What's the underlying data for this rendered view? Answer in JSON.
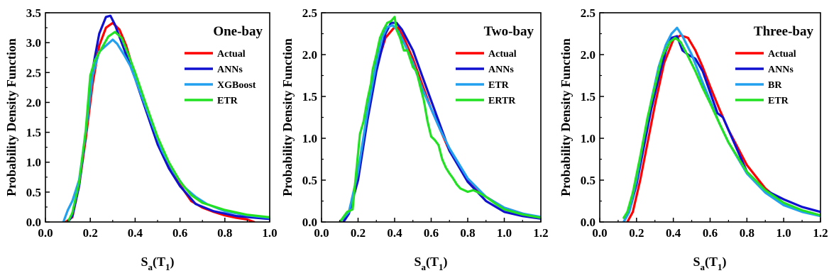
{
  "chart_data": [
    {
      "type": "line",
      "title": "One-bay",
      "xlabel_main": "S",
      "xlabel_sub": "a",
      "xlabel_paren": "(T",
      "xlabel_sub2": "1",
      "xlabel_close": ")",
      "ylabel": "Probability Density Function",
      "xlim": [
        0.0,
        1.0
      ],
      "ylim": [
        0.0,
        3.5
      ],
      "xticks": [
        "0.0",
        "0.2",
        "0.4",
        "0.6",
        "0.8",
        "1.0"
      ],
      "yticks": [
        "0.0",
        "0.5",
        "1.0",
        "1.5",
        "2.0",
        "2.5",
        "3.0",
        "3.5"
      ],
      "legend_position": "top-right",
      "series": [
        {
          "name": "Actual",
          "color": "#ff0000",
          "x": [
            0.09,
            0.12,
            0.15,
            0.18,
            0.21,
            0.24,
            0.27,
            0.3,
            0.33,
            0.36,
            0.4,
            0.45,
            0.5,
            0.55,
            0.6,
            0.65,
            0.7,
            0.75,
            0.8,
            0.85,
            0.9,
            0.93
          ],
          "y": [
            0.0,
            0.08,
            0.6,
            1.4,
            2.3,
            2.95,
            3.25,
            3.33,
            3.22,
            2.95,
            2.45,
            1.9,
            1.35,
            0.95,
            0.62,
            0.35,
            0.24,
            0.17,
            0.11,
            0.07,
            0.04,
            0.0
          ]
        },
        {
          "name": "ANNs",
          "color": "#1010d0",
          "x": [
            0.1,
            0.12,
            0.15,
            0.18,
            0.21,
            0.24,
            0.27,
            0.29,
            0.31,
            0.34,
            0.37,
            0.4,
            0.45,
            0.5,
            0.55,
            0.6,
            0.67,
            0.75,
            0.85,
            1.0
          ],
          "y": [
            0.0,
            0.1,
            0.6,
            1.5,
            2.55,
            3.15,
            3.43,
            3.45,
            3.3,
            3.0,
            2.7,
            2.4,
            1.85,
            1.3,
            0.9,
            0.6,
            0.3,
            0.18,
            0.1,
            0.05
          ]
        },
        {
          "name": "XGBoost",
          "color": "#22a0f0",
          "x": [
            0.08,
            0.1,
            0.12,
            0.15,
            0.18,
            0.21,
            0.24,
            0.27,
            0.3,
            0.32,
            0.35,
            0.38,
            0.42,
            0.47,
            0.52,
            0.57,
            0.62,
            0.67,
            0.72,
            0.8,
            0.9,
            1.0
          ],
          "y": [
            0.0,
            0.2,
            0.35,
            0.7,
            1.5,
            2.45,
            2.85,
            2.95,
            3.05,
            2.98,
            2.8,
            2.6,
            2.2,
            1.7,
            1.2,
            0.85,
            0.58,
            0.42,
            0.3,
            0.18,
            0.11,
            0.07
          ]
        },
        {
          "name": "ETR",
          "color": "#22e022",
          "x": [
            0.1,
            0.12,
            0.15,
            0.18,
            0.2,
            0.22,
            0.25,
            0.28,
            0.31,
            0.34,
            0.37,
            0.4,
            0.45,
            0.5,
            0.55,
            0.6,
            0.65,
            0.7,
            0.8,
            0.9,
            1.0
          ],
          "y": [
            0.0,
            0.15,
            0.65,
            1.55,
            2.45,
            2.7,
            2.9,
            3.1,
            3.18,
            3.08,
            2.8,
            2.5,
            1.95,
            1.42,
            1.0,
            0.68,
            0.45,
            0.32,
            0.2,
            0.12,
            0.08
          ]
        }
      ]
    },
    {
      "type": "line",
      "title": "Two-bay",
      "xlabel_main": "S",
      "xlabel_sub": "a",
      "xlabel_paren": "(T",
      "xlabel_sub2": "1",
      "xlabel_close": ")",
      "ylabel": "Probability Density Function",
      "xlim": [
        0.0,
        1.2
      ],
      "ylim": [
        0.0,
        2.5
      ],
      "xticks": [
        "0.0",
        "0.2",
        "0.4",
        "0.6",
        "0.8",
        "1.0",
        "1.2"
      ],
      "yticks": [
        "0.0",
        "0.5",
        "1.0",
        "1.5",
        "2.0",
        "2.5"
      ],
      "legend_position": "top-right",
      "series": [
        {
          "name": "Actual",
          "color": "#ff0000",
          "x": [
            0.1,
            0.15,
            0.2,
            0.25,
            0.3,
            0.35,
            0.4,
            0.42,
            0.45,
            0.5,
            0.55,
            0.6,
            0.65,
            0.7,
            0.8,
            0.9,
            1.0,
            1.1,
            1.2
          ],
          "y": [
            0.0,
            0.12,
            0.55,
            1.25,
            1.85,
            2.2,
            2.33,
            2.32,
            2.2,
            1.95,
            1.65,
            1.35,
            1.1,
            0.85,
            0.5,
            0.3,
            0.17,
            0.1,
            0.05
          ]
        },
        {
          "name": "ANNs",
          "color": "#1010d0",
          "x": [
            0.12,
            0.15,
            0.2,
            0.25,
            0.3,
            0.35,
            0.38,
            0.41,
            0.44,
            0.5,
            0.55,
            0.6,
            0.65,
            0.7,
            0.8,
            0.9,
            1.0,
            1.1,
            1.2
          ],
          "y": [
            0.0,
            0.1,
            0.5,
            1.2,
            1.8,
            2.25,
            2.38,
            2.38,
            2.3,
            2.05,
            1.75,
            1.45,
            1.15,
            0.85,
            0.48,
            0.25,
            0.12,
            0.07,
            0.04
          ]
        },
        {
          "name": "ETR",
          "color": "#22a0f0",
          "x": [
            0.1,
            0.15,
            0.2,
            0.25,
            0.3,
            0.33,
            0.36,
            0.39,
            0.42,
            0.46,
            0.5,
            0.55,
            0.6,
            0.65,
            0.7,
            0.8,
            0.9,
            1.0,
            1.1,
            1.2
          ],
          "y": [
            0.0,
            0.12,
            0.6,
            1.3,
            1.9,
            2.2,
            2.33,
            2.35,
            2.28,
            2.1,
            1.9,
            1.6,
            1.35,
            1.1,
            0.88,
            0.52,
            0.3,
            0.17,
            0.1,
            0.06
          ]
        },
        {
          "name": "ERTR",
          "color": "#22e022",
          "x": [
            0.1,
            0.14,
            0.17,
            0.19,
            0.21,
            0.23,
            0.25,
            0.27,
            0.28,
            0.3,
            0.32,
            0.34,
            0.36,
            0.38,
            0.4,
            0.41,
            0.43,
            0.45,
            0.47,
            0.5,
            0.52,
            0.54,
            0.56,
            0.58,
            0.6,
            0.62,
            0.64,
            0.66,
            0.68,
            0.7,
            0.72,
            0.74,
            0.76,
            0.78,
            0.8,
            0.83,
            0.86,
            0.9,
            0.95,
            1.0,
            1.1,
            1.2
          ],
          "y": [
            0.0,
            0.12,
            0.15,
            0.6,
            1.05,
            1.2,
            1.45,
            1.65,
            1.82,
            2.0,
            2.2,
            2.3,
            2.38,
            2.4,
            2.45,
            2.3,
            2.2,
            2.05,
            2.05,
            1.85,
            1.8,
            1.62,
            1.45,
            1.2,
            1.02,
            0.98,
            0.92,
            0.75,
            0.65,
            0.58,
            0.52,
            0.45,
            0.4,
            0.38,
            0.36,
            0.38,
            0.35,
            0.3,
            0.22,
            0.15,
            0.09,
            0.05
          ]
        }
      ]
    },
    {
      "type": "line",
      "title": "Three-bay",
      "xlabel_main": "S",
      "xlabel_sub": "a",
      "xlabel_paren": "(T",
      "xlabel_sub2": "1",
      "xlabel_close": ")",
      "ylabel": "Probability Density Function",
      "xlim": [
        0.0,
        1.2
      ],
      "ylim": [
        0.0,
        2.5
      ],
      "xticks": [
        "0.0",
        "0.2",
        "0.4",
        "0.6",
        "0.8",
        "1.0",
        "1.2"
      ],
      "yticks": [
        "0.0",
        "0.5",
        "1.0",
        "1.5",
        "2.0",
        "2.5"
      ],
      "legend_position": "top-right",
      "series": [
        {
          "name": "Actual",
          "color": "#ff0000",
          "x": [
            0.15,
            0.18,
            0.22,
            0.26,
            0.3,
            0.35,
            0.4,
            0.44,
            0.48,
            0.52,
            0.56,
            0.6,
            0.65,
            0.7,
            0.8,
            0.9,
            1.0,
            1.1,
            1.2
          ],
          "y": [
            0.0,
            0.12,
            0.5,
            0.95,
            1.4,
            1.9,
            2.18,
            2.23,
            2.2,
            2.05,
            1.85,
            1.62,
            1.35,
            1.1,
            0.68,
            0.4,
            0.22,
            0.13,
            0.08
          ]
        },
        {
          "name": "ANNs",
          "color": "#1010d0",
          "x": [
            0.13,
            0.16,
            0.2,
            0.24,
            0.28,
            0.32,
            0.36,
            0.39,
            0.42,
            0.45,
            0.48,
            0.52,
            0.56,
            0.6,
            0.64,
            0.67,
            0.7,
            0.75,
            0.8,
            0.9,
            1.0,
            1.1,
            1.2
          ],
          "y": [
            0.0,
            0.12,
            0.45,
            0.9,
            1.35,
            1.72,
            2.05,
            2.2,
            2.22,
            2.05,
            2.0,
            1.95,
            1.8,
            1.55,
            1.3,
            1.25,
            1.1,
            0.85,
            0.6,
            0.38,
            0.27,
            0.18,
            0.12
          ]
        },
        {
          "name": "BR",
          "color": "#22a0f0",
          "x": [
            0.13,
            0.16,
            0.2,
            0.24,
            0.28,
            0.32,
            0.36,
            0.39,
            0.42,
            0.45,
            0.5,
            0.55,
            0.6,
            0.65,
            0.7,
            0.8,
            0.9,
            1.0,
            1.1,
            1.2
          ],
          "y": [
            0.0,
            0.12,
            0.5,
            1.0,
            1.45,
            1.85,
            2.12,
            2.25,
            2.32,
            2.22,
            2.0,
            1.72,
            1.45,
            1.18,
            0.95,
            0.58,
            0.35,
            0.2,
            0.12,
            0.07
          ]
        },
        {
          "name": "ETR",
          "color": "#22e022",
          "x": [
            0.13,
            0.15,
            0.18,
            0.22,
            0.26,
            0.3,
            0.34,
            0.38,
            0.41,
            0.44,
            0.48,
            0.52,
            0.56,
            0.6,
            0.65,
            0.7,
            0.8,
            0.9,
            1.0,
            1.1,
            1.2
          ],
          "y": [
            0.05,
            0.12,
            0.35,
            0.78,
            1.25,
            1.62,
            1.98,
            2.15,
            2.2,
            2.15,
            1.98,
            1.8,
            1.6,
            1.42,
            1.18,
            0.95,
            0.6,
            0.38,
            0.23,
            0.14,
            0.08
          ]
        }
      ]
    }
  ]
}
